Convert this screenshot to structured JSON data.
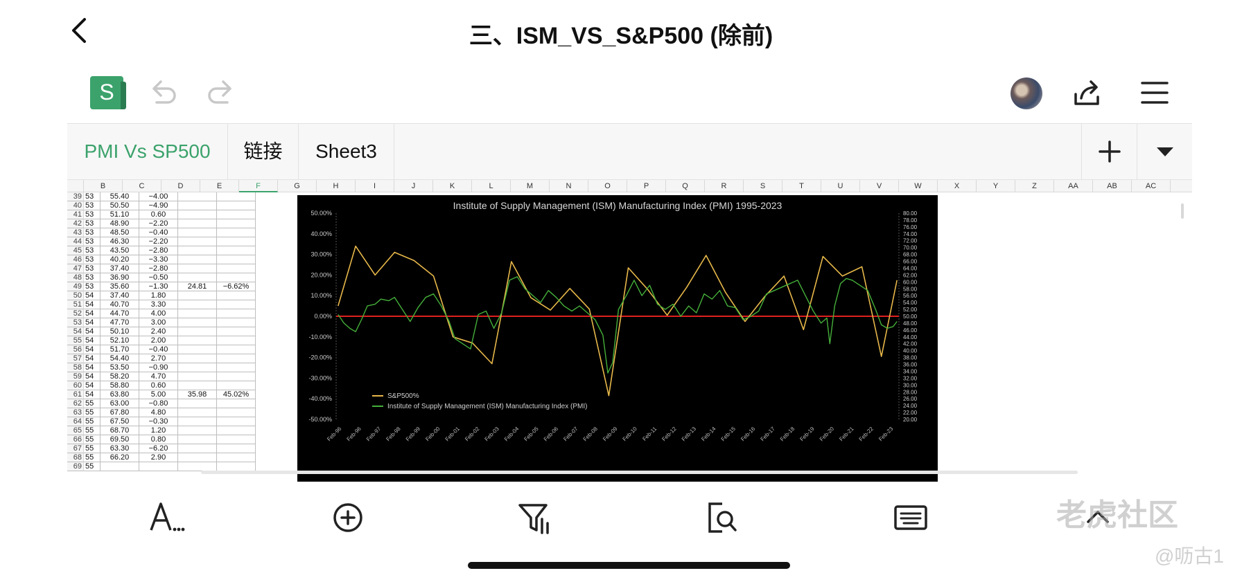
{
  "header": {
    "title": "三、ISM_VS_S&P500 (除前)"
  },
  "toolbar": {
    "app_icon_letter": "S"
  },
  "sheet_tabs": [
    {
      "label": "PMI Vs SP500",
      "active": true
    },
    {
      "label": "链接",
      "active": false
    },
    {
      "label": "Sheet3",
      "active": false
    }
  ],
  "columns": [
    "",
    "B",
    "C",
    "D",
    "E",
    "F",
    "G",
    "H",
    "I",
    "J",
    "K",
    "L",
    "M",
    "N",
    "O",
    "P",
    "Q",
    "R",
    "S",
    "T",
    "U",
    "V",
    "W",
    "X",
    "Y",
    "Z",
    "AA",
    "AB",
    "AC"
  ],
  "rows": [
    {
      "n": "39",
      "a": "53",
      "b": "55.40",
      "c": "−4.00",
      "d": "",
      "e": ""
    },
    {
      "n": "40",
      "a": "53",
      "b": "50.50",
      "c": "−4.90",
      "d": "",
      "e": ""
    },
    {
      "n": "41",
      "a": "53",
      "b": "51.10",
      "c": "0.60",
      "d": "",
      "e": ""
    },
    {
      "n": "42",
      "a": "53",
      "b": "48.90",
      "c": "−2.20",
      "d": "",
      "e": ""
    },
    {
      "n": "43",
      "a": "53",
      "b": "48.50",
      "c": "−0.40",
      "d": "",
      "e": ""
    },
    {
      "n": "44",
      "a": "53",
      "b": "46.30",
      "c": "−2.20",
      "d": "",
      "e": ""
    },
    {
      "n": "45",
      "a": "53",
      "b": "43.50",
      "c": "−2.80",
      "d": "",
      "e": ""
    },
    {
      "n": "46",
      "a": "53",
      "b": "40.20",
      "c": "−3.30",
      "d": "",
      "e": ""
    },
    {
      "n": "47",
      "a": "53",
      "b": "37.40",
      "c": "−2.80",
      "d": "",
      "e": ""
    },
    {
      "n": "48",
      "a": "53",
      "b": "36.90",
      "c": "−0.50",
      "d": "",
      "e": ""
    },
    {
      "n": "49",
      "a": "53",
      "b": "35.60",
      "c": "−1.30",
      "d": "24.81",
      "e": "−6.62%"
    },
    {
      "n": "50",
      "a": "54",
      "b": "37.40",
      "c": "1.80",
      "d": "",
      "e": ""
    },
    {
      "n": "51",
      "a": "54",
      "b": "40.70",
      "c": "3.30",
      "d": "",
      "e": ""
    },
    {
      "n": "52",
      "a": "54",
      "b": "44.70",
      "c": "4.00",
      "d": "",
      "e": ""
    },
    {
      "n": "53",
      "a": "54",
      "b": "47.70",
      "c": "3.00",
      "d": "",
      "e": ""
    },
    {
      "n": "54",
      "a": "54",
      "b": "50.10",
      "c": "2.40",
      "d": "",
      "e": ""
    },
    {
      "n": "55",
      "a": "54",
      "b": "52.10",
      "c": "2.00",
      "d": "",
      "e": ""
    },
    {
      "n": "56",
      "a": "54",
      "b": "51.70",
      "c": "−0.40",
      "d": "",
      "e": ""
    },
    {
      "n": "57",
      "a": "54",
      "b": "54.40",
      "c": "2.70",
      "d": "",
      "e": ""
    },
    {
      "n": "58",
      "a": "54",
      "b": "53.50",
      "c": "−0.90",
      "d": "",
      "e": ""
    },
    {
      "n": "59",
      "a": "54",
      "b": "58.20",
      "c": "4.70",
      "d": "",
      "e": ""
    },
    {
      "n": "60",
      "a": "54",
      "b": "58.80",
      "c": "0.60",
      "d": "",
      "e": ""
    },
    {
      "n": "61",
      "a": "54",
      "b": "63.80",
      "c": "5.00",
      "d": "35.98",
      "e": "45.02%"
    },
    {
      "n": "62",
      "a": "55",
      "b": "63.00",
      "c": "−0.80",
      "d": "",
      "e": ""
    },
    {
      "n": "63",
      "a": "55",
      "b": "67.80",
      "c": "4.80",
      "d": "",
      "e": ""
    },
    {
      "n": "64",
      "a": "55",
      "b": "67.50",
      "c": "−0.30",
      "d": "",
      "e": ""
    },
    {
      "n": "65",
      "a": "55",
      "b": "68.70",
      "c": "1.20",
      "d": "",
      "e": ""
    },
    {
      "n": "66",
      "a": "55",
      "b": "69.50",
      "c": "0.80",
      "d": "",
      "e": ""
    },
    {
      "n": "67",
      "a": "55",
      "b": "63.30",
      "c": "−6.20",
      "d": "",
      "e": ""
    },
    {
      "n": "68",
      "a": "55",
      "b": "66.20",
      "c": "2.90",
      "d": "",
      "e": ""
    },
    {
      "n": "69",
      "a": "55",
      "b": "",
      "c": "",
      "d": "",
      "e": ""
    }
  ],
  "chart_data": {
    "type": "line",
    "title": "Institute of Supply Management (ISM) Manufacturing Index (PMI) 1995-2023",
    "colors": {
      "sp500": "#e8b84a",
      "pmi": "#45b03a",
      "zero_line": "#e02020",
      "background": "#000000"
    },
    "y_left": {
      "range": [
        -0.5,
        0.5
      ],
      "ticks": [
        "50.00%",
        "40.00%",
        "30.00%",
        "20.00%",
        "10.00%",
        "0.00%",
        "-10.00%",
        "-20.00%",
        "-30.00%",
        "-40.00%",
        "-50.00%"
      ]
    },
    "y_right": {
      "range": [
        20,
        80
      ],
      "ticks": [
        "80.00",
        "78.00",
        "76.00",
        "74.00",
        "72.00",
        "70.00",
        "68.00",
        "66.00",
        "64.00",
        "62.00",
        "60.00",
        "58.00",
        "56.00",
        "54.00",
        "52.00",
        "50.00",
        "48.00",
        "46.00",
        "44.00",
        "42.00",
        "40.00",
        "38.00",
        "36.00",
        "34.00",
        "32.00",
        "30.00",
        "28.00",
        "26.00",
        "24.00",
        "22.00",
        "20.00"
      ]
    },
    "x_range": [
      1995,
      2023.9
    ],
    "x_ticks": [
      "Feb-96",
      "Feb-96",
      "Feb-97",
      "Feb-98",
      "Feb-99",
      "Feb-00",
      "Feb-01",
      "Feb-02",
      "Feb-03",
      "Feb-04",
      "Feb-05",
      "Feb-06",
      "Feb-07",
      "Feb-08",
      "Feb-09",
      "Feb-10",
      "Feb-11",
      "Feb-12",
      "Feb-13",
      "Feb-14",
      "Feb-15",
      "Feb-16",
      "Feb-17",
      "Feb-18",
      "Feb-19",
      "Feb-20",
      "Feb-21",
      "Feb-22",
      "Feb-23"
    ],
    "legend": "bottom-left",
    "series": [
      {
        "name": "S&P500%",
        "axis": "left",
        "x": [
          1995.1,
          1996.0,
          1997.0,
          1998.0,
          1999.0,
          2000.0,
          2001.0,
          2002.0,
          2003.0,
          2004.0,
          2005.0,
          2006.0,
          2007.0,
          2008.0,
          2009.0,
          2010.0,
          2011.0,
          2012.0,
          2013.0,
          2014.0,
          2015.0,
          2016.0,
          2017.0,
          2018.0,
          2019.0,
          2020.0,
          2021.0,
          2022.0,
          2023.0,
          2023.8
        ],
        "y": [
          0.05,
          0.34,
          0.2,
          0.31,
          0.27,
          0.195,
          -0.1,
          -0.13,
          -0.23,
          0.265,
          0.09,
          0.03,
          0.135,
          0.035,
          -0.385,
          0.235,
          0.13,
          0.005,
          0.14,
          0.295,
          0.115,
          -0.025,
          0.095,
          0.195,
          -0.065,
          0.29,
          0.195,
          0.24,
          -0.195,
          0.175
        ]
      },
      {
        "name": "Institute of Supply Management (ISM) Manufacturing Index (PMI)",
        "axis": "right",
        "x": [
          1995.1,
          1995.4,
          1995.7,
          1996.0,
          1996.3,
          1996.6,
          1997.0,
          1997.3,
          1997.7,
          1998.0,
          1998.4,
          1998.8,
          1999.2,
          1999.6,
          2000.0,
          2000.4,
          2000.8,
          2001.1,
          2001.5,
          2001.9,
          2002.3,
          2002.7,
          2003.1,
          2003.5,
          2003.9,
          2004.3,
          2004.7,
          2005.1,
          2005.5,
          2005.9,
          2006.3,
          2006.7,
          2007.1,
          2007.5,
          2007.9,
          2008.3,
          2008.7,
          2008.95,
          2009.2,
          2009.5,
          2009.9,
          2010.3,
          2010.7,
          2011.1,
          2011.5,
          2011.9,
          2012.3,
          2012.7,
          2013.1,
          2013.5,
          2013.9,
          2014.3,
          2014.7,
          2015.1,
          2015.5,
          2015.9,
          2016.3,
          2016.7,
          2017.1,
          2017.5,
          2017.9,
          2018.3,
          2018.7,
          2019.1,
          2019.5,
          2019.9,
          2020.2,
          2020.35,
          2020.6,
          2020.9,
          2021.2,
          2021.5,
          2021.9,
          2022.3,
          2022.7,
          2023.0,
          2023.3,
          2023.6,
          2023.8
        ],
        "y": [
          50.5,
          48.0,
          46.5,
          45.5,
          49.0,
          53.0,
          53.5,
          55.0,
          54.5,
          55.5,
          52.0,
          48.5,
          52.5,
          55.5,
          56.5,
          53.0,
          48.5,
          43.5,
          42.0,
          40.5,
          50.5,
          51.5,
          46.5,
          51.0,
          60.5,
          61.5,
          58.0,
          56.0,
          54.0,
          57.5,
          55.5,
          53.0,
          51.5,
          53.0,
          51.0,
          49.0,
          44.5,
          33.5,
          36.5,
          52.0,
          56.0,
          60.5,
          56.0,
          59.0,
          53.5,
          52.0,
          53.5,
          50.0,
          53.0,
          51.0,
          56.5,
          55.0,
          57.5,
          53.0,
          52.5,
          49.0,
          50.0,
          51.5,
          56.5,
          57.5,
          58.5,
          59.5,
          60.5,
          56.0,
          51.5,
          48.0,
          49.5,
          42.0,
          53.0,
          59.5,
          61.0,
          60.5,
          59.0,
          57.5,
          52.0,
          47.5,
          46.5,
          47.0,
          48.5
        ]
      }
    ]
  },
  "watermark": {
    "main": "老虎社区",
    "user": "@呖古1"
  }
}
